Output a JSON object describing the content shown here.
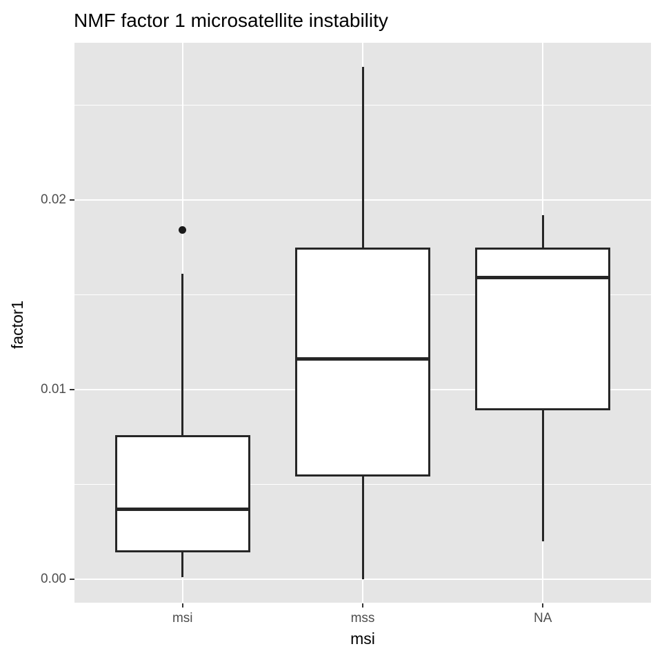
{
  "page": {
    "background": "#FFFFFF"
  },
  "chart_data": {
    "type": "boxplot",
    "title": "NMF factor 1 microsatellite instability",
    "xlabel": "msi",
    "ylabel": "factor1",
    "categories": [
      "msi",
      "mss",
      "NA"
    ],
    "series": [
      {
        "category": "msi",
        "whisker_low": 0.0001,
        "q1": 0.0014,
        "median": 0.0037,
        "q3": 0.0076,
        "whisker_high": 0.0161,
        "outliers": [
          0.0184
        ]
      },
      {
        "category": "mss",
        "whisker_low": 0.0,
        "q1": 0.0054,
        "median": 0.0116,
        "q3": 0.0175,
        "whisker_high": 0.027,
        "outliers": []
      },
      {
        "category": "NA",
        "whisker_low": 0.002,
        "q1": 0.0089,
        "median": 0.0159,
        "q3": 0.0175,
        "whisker_high": 0.0192,
        "outliers": []
      }
    ],
    "y_ticks": [
      {
        "value": 0.0,
        "label": "0.00"
      },
      {
        "value": 0.01,
        "label": "0.01"
      },
      {
        "value": 0.02,
        "label": "0.02"
      }
    ],
    "y_minor_gridlines": [
      0.005,
      0.015,
      0.025
    ],
    "ylim": [
      -0.00124,
      0.02829
    ],
    "grid": true,
    "legend": false,
    "colors": {
      "panel_background": "#E5E5E5",
      "gridline": "#FFFFFF",
      "box_stroke": "#262626",
      "box_fill": "#FFFFFF",
      "outlier": "#1A1A1A",
      "tick_mark": "#333333",
      "tick_label": "#4D4D4D",
      "title": "#000000"
    }
  }
}
